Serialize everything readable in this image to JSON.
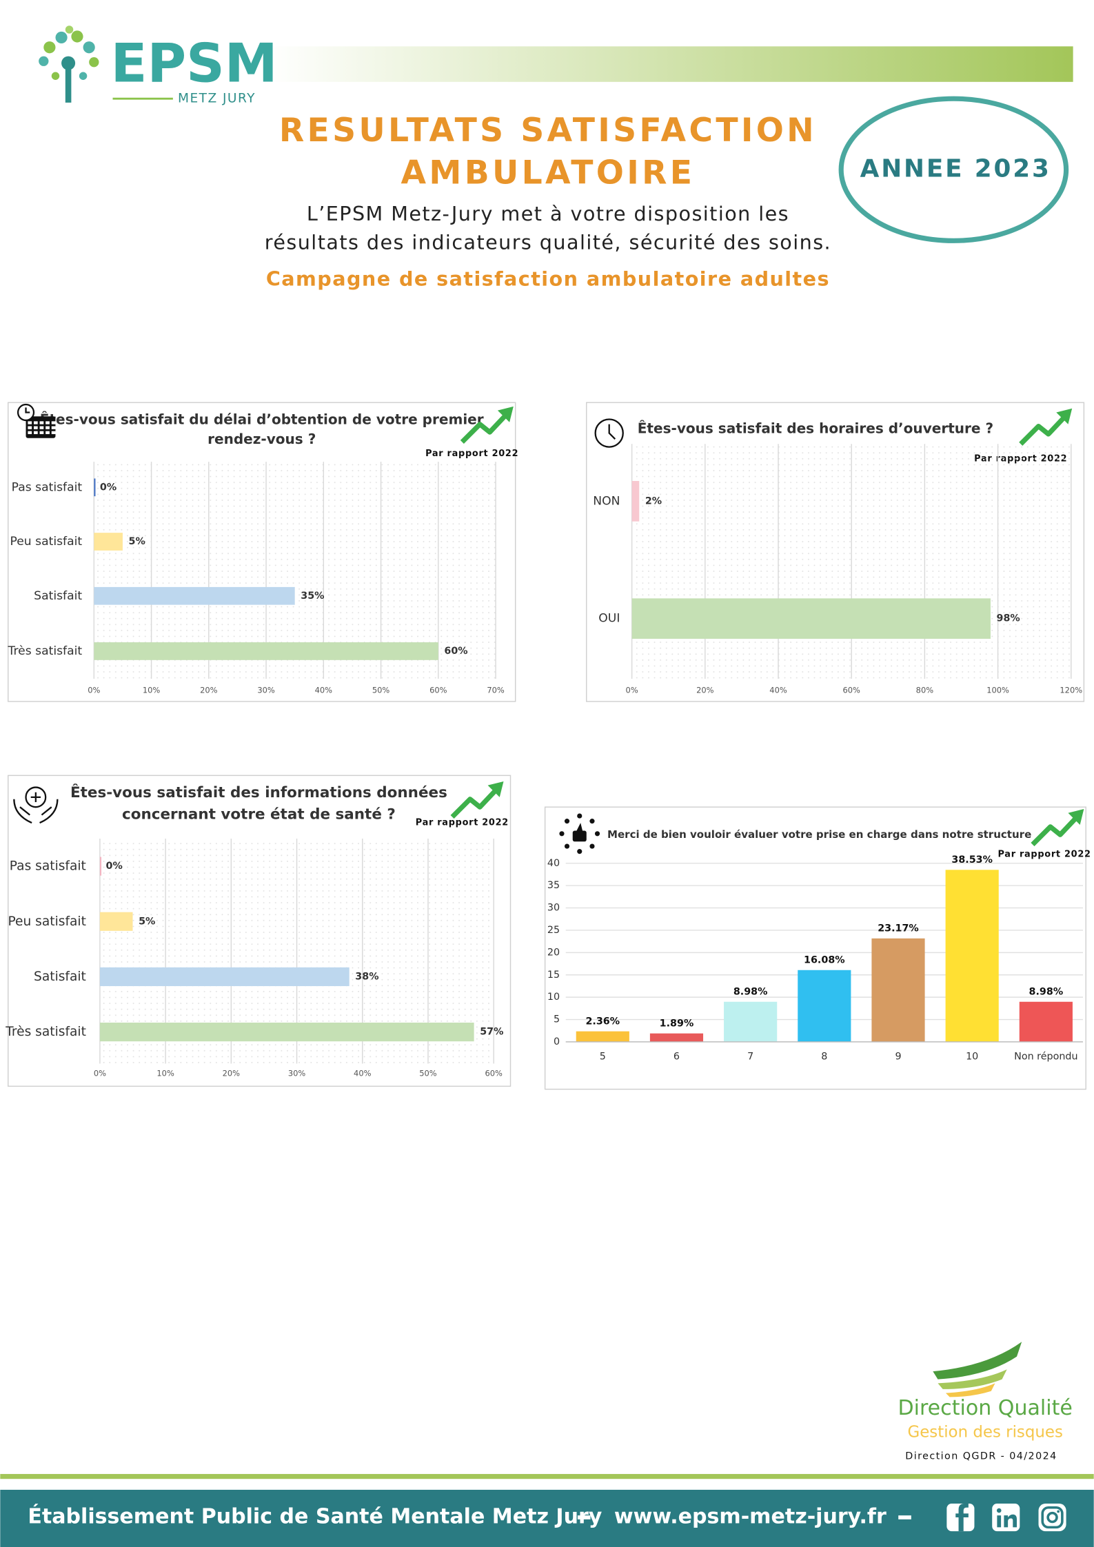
{
  "header": {
    "logo": "EPSM",
    "logo_sub": "METZ JURY",
    "title_lines": [
      "RESULTATS SATISFACTION",
      "AMBULATOIRE"
    ],
    "year": "ANNEE 2023",
    "intro_lines": [
      "L’EPSM Metz-Jury met à votre disposition les",
      "résultats des indicateurs qualité, sécurité des soins."
    ],
    "subtitle": "Campagne de satisfaction ambulatoire adultes"
  },
  "chart_data": [
    {
      "type": "hbar",
      "title": [
        "Êtes-vous satisfait du délai d’obtention de votre premier",
        "rendez-vous ?"
      ],
      "note": "Par rapport 2022",
      "categories": [
        "Pas satisfait",
        "Peu satisfait",
        "Satisfait",
        "Très satisfait"
      ],
      "values": [
        0,
        5,
        35,
        60
      ],
      "value_labels": [
        "0%",
        "5%",
        "35%",
        "60%"
      ],
      "colors": [
        "#4472c4",
        "#ffe699",
        "#bdd7ee",
        "#c5e0b4"
      ],
      "xlim": [
        0,
        70
      ],
      "xticks": [
        {
          "value": 0,
          "label": "0%"
        },
        {
          "value": 10,
          "label": "10%"
        },
        {
          "value": 20,
          "label": "20%"
        },
        {
          "value": 30,
          "label": "30%"
        },
        {
          "value": 40,
          "label": "40%"
        },
        {
          "value": 50,
          "label": "50%"
        },
        {
          "value": 60,
          "label": "60%"
        },
        {
          "value": 70,
          "label": "70%"
        }
      ],
      "grid": true
    },
    {
      "type": "hbar",
      "title": [
        "Êtes-vous satisfait des horaires d’ouverture ?"
      ],
      "note": "Par rapport 2022",
      "categories": [
        "NON",
        "OUI"
      ],
      "values": [
        2,
        98
      ],
      "value_labels": [
        "2%",
        "98%"
      ],
      "colors": [
        "#f8c8d0",
        "#c5e0b4"
      ],
      "xlim": [
        0,
        120
      ],
      "xticks": [
        {
          "value": 0,
          "label": "0%"
        },
        {
          "value": 20,
          "label": "20%"
        },
        {
          "value": 40,
          "label": "40%"
        },
        {
          "value": 60,
          "label": "60%"
        },
        {
          "value": 80,
          "label": "80%"
        },
        {
          "value": 100,
          "label": "100%"
        },
        {
          "value": 120,
          "label": "120%"
        }
      ],
      "grid": true
    },
    {
      "type": "hbar",
      "title": [
        "Êtes-vous satisfait des informations données",
        "concernant votre état de santé ?"
      ],
      "note": "Par rapport 2022",
      "categories": [
        "Pas satisfait",
        "Peu satisfait",
        "Satisfait",
        "Très satisfait"
      ],
      "values": [
        0,
        5,
        38,
        57
      ],
      "value_labels": [
        "0%",
        "5%",
        "38%",
        "57%"
      ],
      "colors": [
        "#f4b6c2",
        "#ffe699",
        "#bdd7ee",
        "#c5e0b4"
      ],
      "xlim": [
        0,
        60
      ],
      "xticks": [
        {
          "value": 0,
          "label": "0%"
        },
        {
          "value": 10,
          "label": "10%"
        },
        {
          "value": 20,
          "label": "20%"
        },
        {
          "value": 30,
          "label": "30%"
        },
        {
          "value": 40,
          "label": "40%"
        },
        {
          "value": 50,
          "label": "50%"
        },
        {
          "value": 60,
          "label": "60%"
        }
      ],
      "grid": true
    },
    {
      "type": "bar",
      "title": [
        "Merci de bien vouloir évaluer votre prise en charge dans notre structure"
      ],
      "note": "Par rapport 2022",
      "categories": [
        "5",
        "6",
        "7",
        "8",
        "9",
        "10",
        "Non répondu"
      ],
      "values": [
        2.36,
        1.89,
        8.98,
        16.08,
        23.17,
        38.53,
        8.98
      ],
      "value_labels": [
        "2.36%",
        "1.89%",
        "8.98%",
        "16.08%",
        "23.17%",
        "38.53%",
        "8.98%"
      ],
      "colors": [
        "#fbc23a",
        "#e85a5a",
        "#bdf0ef",
        "#30bff0",
        "#d69b62",
        "#ffe033",
        "#ee5656"
      ],
      "ylim": [
        0,
        40
      ],
      "yticks": [
        0,
        5,
        10,
        15,
        20,
        25,
        30,
        35,
        40
      ],
      "grid": true
    }
  ],
  "footer": {
    "brand": "Direction Qualité",
    "brand_sub": "Gestion des risques",
    "ref": "Direction QGDR - 04/2024",
    "band_name": "Établissement Public de Santé Mentale Metz Jury",
    "url": "www.epsm-metz-jury.fr"
  }
}
